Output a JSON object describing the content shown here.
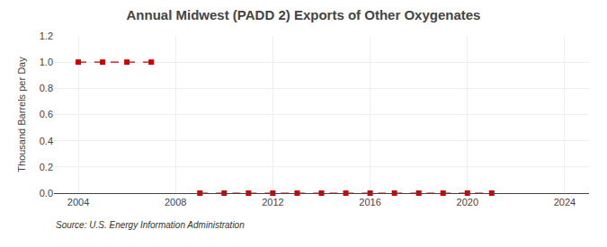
{
  "chart_data": {
    "type": "line",
    "title": "Annual Midwest (PADD 2) Exports of Other Oxygenates",
    "ylabel": "Thousand Barrels per Day",
    "annotations": [
      {
        "text": "Source: U.S. Energy Information Administration"
      }
    ],
    "series": [
      {
        "x": [
          2004,
          2005,
          2006,
          2007
        ],
        "values": [
          1.0,
          1.0,
          1.0,
          1.0
        ],
        "color": "#cc0000",
        "line_style": "dashed",
        "marker": "square"
      },
      {
        "x": [
          2009,
          2010,
          2011,
          2012,
          2013,
          2014,
          2015,
          2016,
          2017,
          2018,
          2019,
          2020,
          2021
        ],
        "values": [
          0.0,
          0.0,
          0.0,
          0.0,
          0.0,
          0.0,
          0.0,
          0.0,
          0.0,
          0.0,
          0.0,
          0.0,
          0.0
        ],
        "color": "#cc0000",
        "line_style": "dashed",
        "marker": "square"
      }
    ],
    "xlim": [
      2003,
      2025
    ],
    "xticks": [
      2004,
      2008,
      2012,
      2016,
      2020,
      2024
    ],
    "ylim": [
      0.0,
      1.2
    ],
    "yticks": [
      {
        "value": 0,
        "label": "0.0"
      },
      0.2,
      0.4,
      0.6,
      0.8,
      {
        "value": 1,
        "label": "1.0"
      },
      1.2
    ],
    "grid": true
  }
}
